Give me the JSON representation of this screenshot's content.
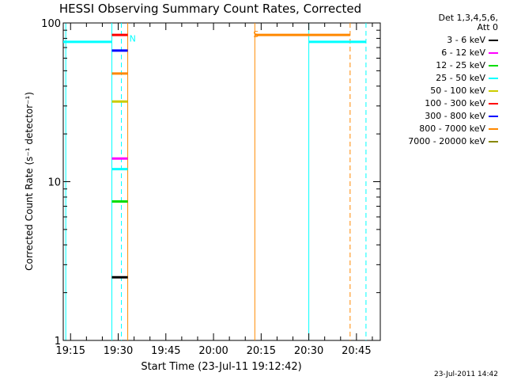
{
  "chart_data": {
    "type": "line",
    "title": "HESSI Observing Summary Count Rates, Corrected",
    "xlabel": "Start Time (23-Jul-11 19:12:42)",
    "ylabel": "Corrected Count Rate (s⁻¹ detector⁻¹)",
    "yscale": "log",
    "ylim": [
      1,
      100
    ],
    "yticks": [
      1,
      10,
      100
    ],
    "yticklabels": [
      "1",
      "10",
      "100"
    ],
    "xlim": [
      "19:12:42",
      "20:52:30"
    ],
    "xticks": [
      "19:15",
      "19:30",
      "19:45",
      "20:00",
      "20:15",
      "20:30",
      "20:45"
    ],
    "legend_placement": "top-right, outside plot",
    "legend_header": [
      "Det 1,3,4,5,6,",
      "Att 0"
    ],
    "series": [
      {
        "name": "3 - 6 keV",
        "color": "#000000",
        "segments": [
          {
            "start": "19:28:00",
            "end": "19:33:00",
            "value": 2.5
          }
        ]
      },
      {
        "name": "6 - 12 keV",
        "color": "#ff00ff",
        "segments": [
          {
            "start": "19:28:00",
            "end": "19:33:00",
            "value": 14
          }
        ]
      },
      {
        "name": "12 - 25 keV",
        "color": "#00dd00",
        "segments": [
          {
            "start": "19:28:00",
            "end": "19:33:00",
            "value": 7.5
          }
        ]
      },
      {
        "name": "25 - 50 keV",
        "color": "#00ffff",
        "segments": [
          {
            "start": "19:12:42",
            "end": "19:28:00",
            "value": 76
          },
          {
            "start": "19:28:00",
            "end": "19:33:00",
            "value": 12
          },
          {
            "start": "20:30:00",
            "end": "20:48:00",
            "value": 76
          }
        ]
      },
      {
        "name": "50 - 100 keV",
        "color": "#cccc00",
        "segments": [
          {
            "start": "19:28:00",
            "end": "19:33:00",
            "value": 32
          }
        ]
      },
      {
        "name": "100 - 300 keV",
        "color": "#ff0000",
        "segments": [
          {
            "start": "19:28:00",
            "end": "19:33:00",
            "value": 84
          }
        ]
      },
      {
        "name": "300 - 800 keV",
        "color": "#0000ff",
        "segments": [
          {
            "start": "19:28:00",
            "end": "19:33:00",
            "value": 67
          }
        ]
      },
      {
        "name": "800 - 7000 keV",
        "color": "#ff8800",
        "segments": [
          {
            "start": "19:28:00",
            "end": "19:33:00",
            "value": 48
          },
          {
            "start": "20:13:00",
            "end": "20:43:00",
            "value": 84
          }
        ]
      },
      {
        "name": "7000 - 20000 keV",
        "color": "#888800",
        "segments": []
      }
    ],
    "vertical_markers": [
      {
        "time": "19:13:30",
        "color": "#00ffff",
        "style": "solid"
      },
      {
        "time": "19:28:00",
        "color": "#00ffff",
        "style": "solid"
      },
      {
        "time": "19:31:00",
        "color": "#00ffff",
        "style": "dashed"
      },
      {
        "time": "19:33:00",
        "color": "#ff8800",
        "style": "solid"
      },
      {
        "time": "20:13:00",
        "color": "#ff8800",
        "style": "solid"
      },
      {
        "time": "20:30:00",
        "color": "#00ffff",
        "style": "solid"
      },
      {
        "time": "20:43:00",
        "color": "#ff8800",
        "style": "dashed"
      },
      {
        "time": "20:48:00",
        "color": "#00ffff",
        "style": "dashed"
      }
    ],
    "annotations": [
      {
        "text": "N",
        "time": "19:33:00",
        "value": 80,
        "color": "#00ffff"
      },
      {
        "text": "S",
        "time": "20:12:00",
        "value": 85,
        "color": "#ff8800"
      }
    ],
    "footer": "23-Jul-2011 14:42"
  }
}
